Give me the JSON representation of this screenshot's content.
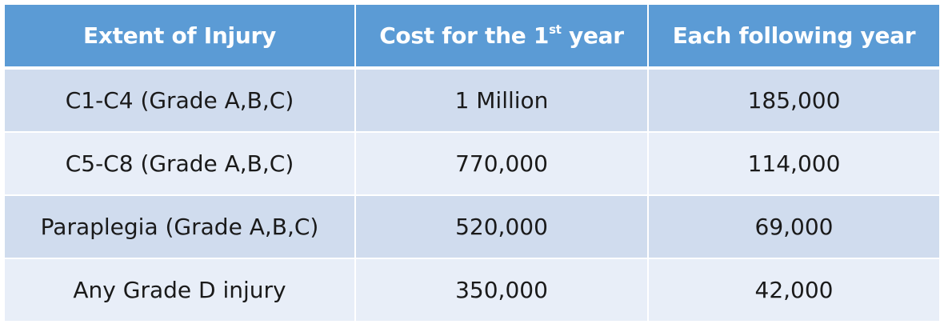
{
  "table": {
    "headers": {
      "col1": "Extent of Injury",
      "col2_prefix": "Cost for the 1",
      "col2_sup": "st",
      "col2_suffix": " year",
      "col3": "Each following year"
    },
    "rows": [
      {
        "extent": "C1-C4 (Grade A,B,C)",
        "first_year": "1 Million",
        "following": "185,000"
      },
      {
        "extent": "C5-C8 (Grade A,B,C)",
        "first_year": "770,000",
        "following": "114,000"
      },
      {
        "extent": "Paraplegia (Grade A,B,C)",
        "first_year": "520,000",
        "following": "69,000"
      },
      {
        "extent": "Any Grade D injury",
        "first_year": "350,000",
        "following": "42,000"
      }
    ]
  },
  "colors": {
    "header_bg": "#5b9bd5",
    "row_odd_bg": "#d0dcee",
    "row_even_bg": "#e8eef8"
  }
}
